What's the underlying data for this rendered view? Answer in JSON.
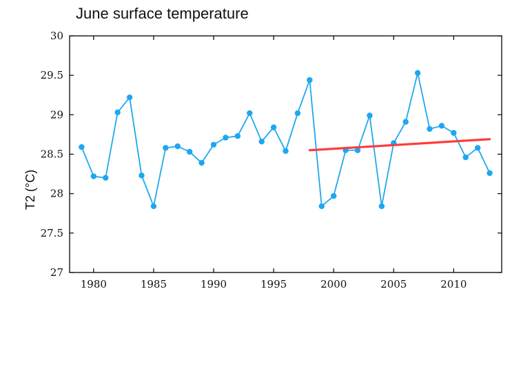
{
  "chart_data": {
    "type": "line",
    "title": "June surface temperature",
    "xlabel": "",
    "ylabel": "T2 (°C)",
    "xlim": [
      1978,
      2014
    ],
    "ylim": [
      27,
      30
    ],
    "x_ticks": [
      1980,
      1985,
      1990,
      1995,
      2000,
      2005,
      2010
    ],
    "y_ticks": [
      27,
      27.5,
      28,
      28.5,
      29,
      29.5,
      30
    ],
    "y_tick_labels": [
      "27",
      "27.5",
      "28",
      "28.5",
      "29",
      "29.5",
      "30"
    ],
    "grid": false,
    "series": [
      {
        "color": "#1ea7f0",
        "marker": "circle",
        "x": [
          1979,
          1980,
          1981,
          1982,
          1983,
          1984,
          1985,
          1986,
          1987,
          1988,
          1989,
          1990,
          1991,
          1992,
          1993,
          1994,
          1995,
          1996,
          1997,
          1998,
          1999,
          2000,
          2001,
          2002,
          2003,
          2004,
          2005,
          2006,
          2007,
          2008,
          2009,
          2010,
          2011,
          2012,
          2013
        ],
        "values": [
          28.59,
          28.22,
          28.2,
          29.03,
          29.22,
          28.23,
          27.84,
          28.58,
          28.6,
          28.53,
          28.39,
          28.62,
          28.71,
          28.73,
          29.02,
          28.66,
          28.84,
          28.54,
          29.02,
          29.44,
          27.84,
          27.97,
          28.55,
          28.55,
          28.99,
          27.84,
          28.64,
          28.91,
          29.53,
          28.82,
          28.86,
          28.77,
          28.46,
          28.58,
          28.26
        ]
      }
    ],
    "trend_line": {
      "color": "#ff3b3b",
      "x": [
        1998,
        2013
      ],
      "values": [
        28.55,
        28.69
      ]
    }
  }
}
